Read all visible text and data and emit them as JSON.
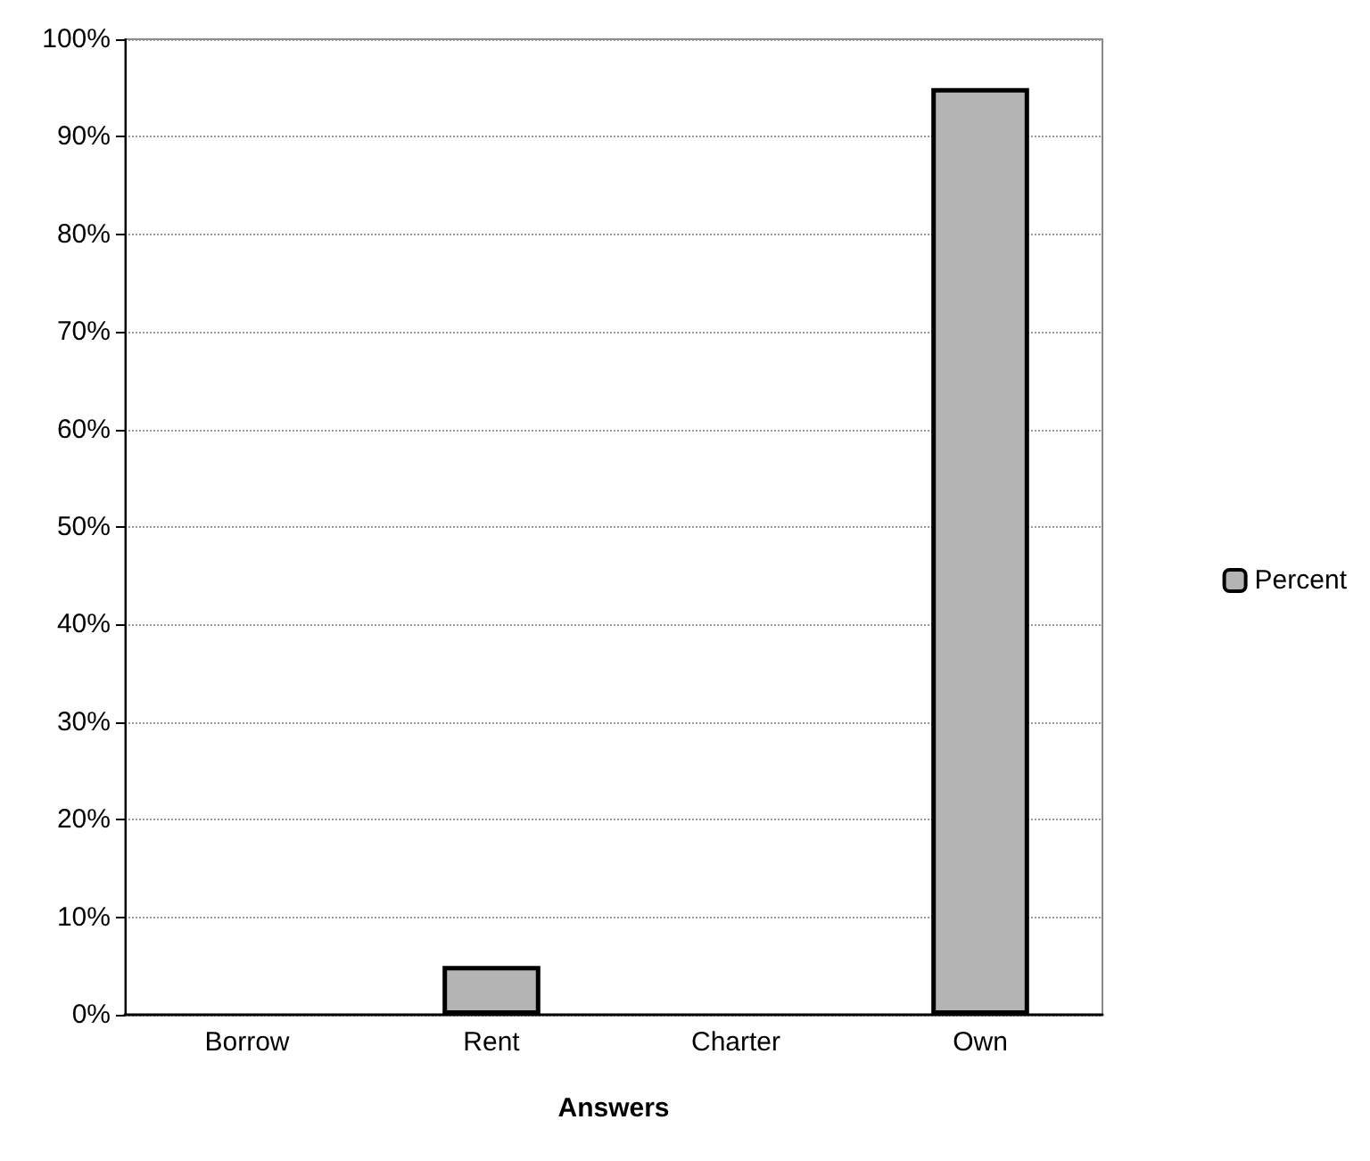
{
  "chart_data": {
    "type": "bar",
    "xlabel": "Answers",
    "categories": [
      "Borrow",
      "Rent",
      "Charter",
      "Own"
    ],
    "series": [
      {
        "name": "Percent",
        "color": "#b4b4b4",
        "values": [
          0,
          5,
          0,
          95
        ]
      }
    ],
    "ylim": [
      0,
      100
    ],
    "yticks": [
      {
        "value": 0,
        "label": "0%"
      },
      {
        "value": 10,
        "label": "10%"
      },
      {
        "value": 20,
        "label": "20%"
      },
      {
        "value": 30,
        "label": "30%"
      },
      {
        "value": 40,
        "label": "40%"
      },
      {
        "value": 50,
        "label": "50%"
      },
      {
        "value": 60,
        "label": "60%"
      },
      {
        "value": 70,
        "label": "70%"
      },
      {
        "value": 80,
        "label": "80%"
      },
      {
        "value": 90,
        "label": "90%"
      },
      {
        "value": 100,
        "label": "100%"
      }
    ],
    "grid": "y",
    "legend": "right"
  }
}
